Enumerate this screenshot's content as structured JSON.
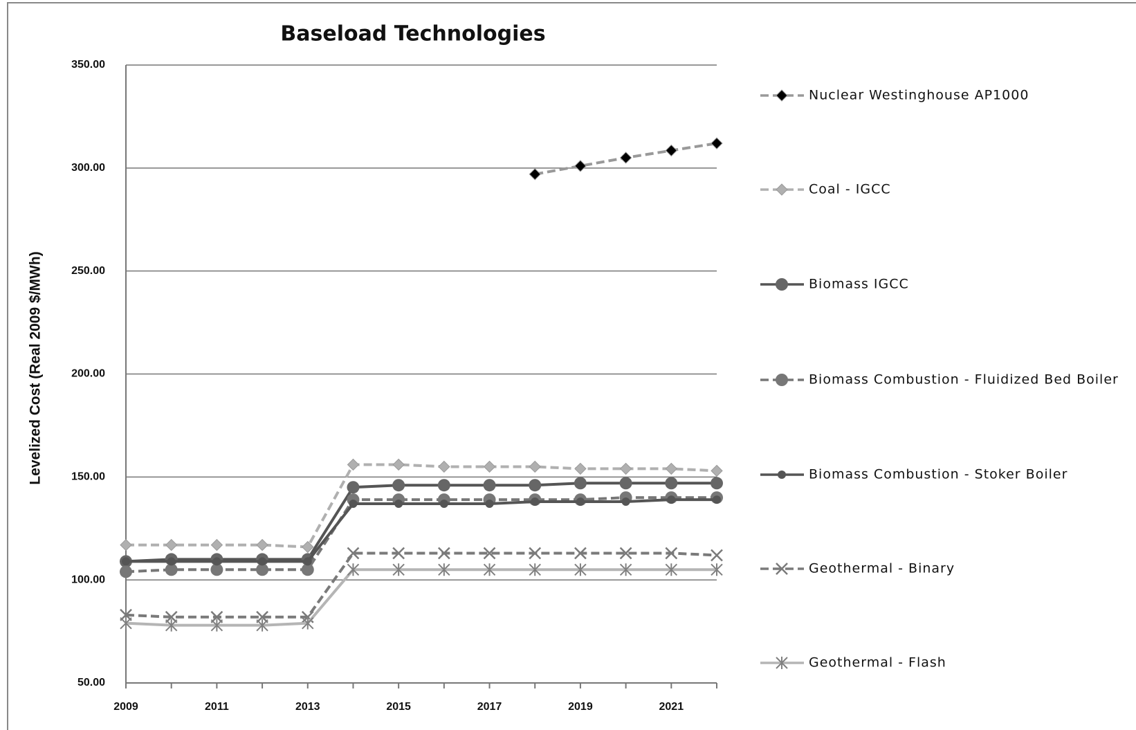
{
  "chart_data": {
    "type": "line",
    "title": "Baseload Technologies",
    "y_label": "Levelized Cost (Real 2009 $/MWh)",
    "x": [
      2009,
      2010,
      2011,
      2012,
      2013,
      2014,
      2015,
      2016,
      2017,
      2018,
      2019,
      2020,
      2021,
      2022
    ],
    "xlim": [
      2009,
      2022
    ],
    "xticks": [
      2009,
      2011,
      2013,
      2015,
      2017,
      2019,
      2021
    ],
    "ylim": [
      50,
      350
    ],
    "yticks": [
      {
        "value": 50,
        "label": "50.00"
      },
      {
        "value": 100,
        "label": "100.00"
      },
      {
        "value": 150,
        "label": "150.00"
      },
      {
        "value": 200,
        "label": "200.00"
      },
      {
        "value": 250,
        "label": "250.00"
      },
      {
        "value": 300,
        "label": "300.00"
      },
      {
        "value": 350,
        "label": "350.00"
      }
    ],
    "grid": true,
    "legend": "right",
    "series": [
      {
        "name": "Nuclear Westinghouse AP1000",
        "color": "#999999",
        "marker_color": "#000000",
        "dash": true,
        "marker": "diamond",
        "values": [
          null,
          null,
          null,
          null,
          null,
          null,
          null,
          null,
          null,
          297,
          301,
          305,
          308.5,
          312
        ]
      },
      {
        "name": "Coal - IGCC",
        "color": "#b0b0b0",
        "marker_color": "#b0b0b0",
        "dash": true,
        "marker": "diamond",
        "values": [
          117,
          117,
          117,
          117,
          116,
          156,
          156,
          155,
          155,
          155,
          154,
          154,
          154,
          153
        ]
      },
      {
        "name": "Biomass IGCC",
        "color": "#555555",
        "marker_color": "#666666",
        "dash": false,
        "marker": "circle",
        "values": [
          109,
          110,
          110,
          110,
          110,
          145,
          146,
          146,
          146,
          146,
          147,
          147,
          147,
          147
        ]
      },
      {
        "name": "Biomass Combustion   - Fluidized Bed Boiler",
        "color": "#777777",
        "marker_color": "#777777",
        "dash": true,
        "marker": "circle",
        "values": [
          104,
          105,
          105,
          105,
          105,
          139,
          139,
          139,
          139,
          139,
          139,
          140,
          140,
          140
        ]
      },
      {
        "name": "Biomass Combustion   - Stoker Boiler",
        "color": "#555555",
        "marker_color": "#555555",
        "dash": false,
        "marker": "small-circle",
        "values": [
          109,
          109,
          109,
          109,
          109,
          137,
          137,
          137,
          137,
          138,
          138,
          138,
          139,
          139
        ]
      },
      {
        "name": "Geothermal  - Binary",
        "color": "#7a7a7a",
        "marker_color": "#7a7a7a",
        "dash": true,
        "marker": "x",
        "values": [
          83,
          82,
          82,
          82,
          82,
          113,
          113,
          113,
          113,
          113,
          113,
          113,
          113,
          112
        ]
      },
      {
        "name": "Geothermal  - Flash",
        "color": "#b5b5b5",
        "marker_color": "#808080",
        "dash": false,
        "marker": "star",
        "values": [
          79,
          78,
          78,
          78,
          79,
          105,
          105,
          105,
          105,
          105,
          105,
          105,
          105,
          105
        ]
      }
    ]
  }
}
